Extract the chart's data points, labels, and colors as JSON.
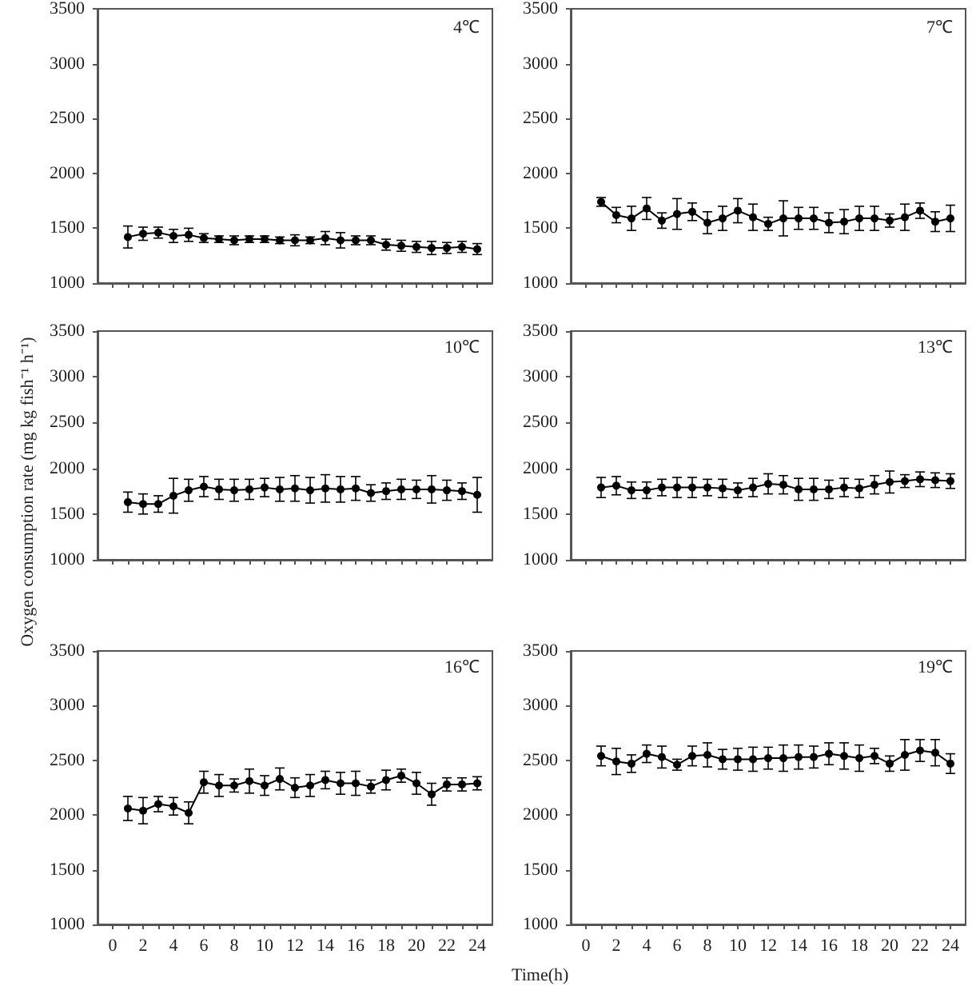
{
  "chart_data": [
    {
      "type": "line",
      "annotations": [
        "4℃"
      ],
      "tick_labels": "y",
      "marker": "circle",
      "line_style": "solid",
      "x": [
        1,
        2,
        3,
        4,
        5,
        6,
        7,
        8,
        9,
        10,
        11,
        12,
        13,
        14,
        15,
        16,
        17,
        18,
        19,
        20,
        21,
        22,
        23,
        24
      ],
      "xlim": [
        -1,
        25
      ],
      "xticks": [
        0,
        {
          "value": 1,
          "label": null
        },
        2,
        {
          "value": 3,
          "label": null
        },
        4,
        {
          "value": 5,
          "label": null
        },
        6,
        {
          "value": 7,
          "label": null
        },
        8,
        {
          "value": 9,
          "label": null
        },
        10,
        {
          "value": 11,
          "label": null
        },
        12,
        {
          "value": 13,
          "label": null
        },
        14,
        {
          "value": 15,
          "label": null
        },
        16,
        {
          "value": 17,
          "label": null
        },
        18,
        {
          "value": 19,
          "label": null
        },
        20,
        {
          "value": 21,
          "label": null
        },
        22,
        {
          "value": 23,
          "label": null
        },
        24
      ],
      "ylim": [
        1000,
        3500
      ],
      "yticks": [
        1000,
        1500,
        2000,
        2500,
        3000,
        3500
      ],
      "series": [
        {
          "color": "#000000",
          "values": [
            1420,
            1450,
            1460,
            1430,
            1440,
            1410,
            1400,
            1390,
            1400,
            1400,
            1390,
            1390,
            1390,
            1410,
            1390,
            1390,
            1390,
            1350,
            1340,
            1330,
            1320,
            1320,
            1330,
            1310
          ],
          "errors": [
            100,
            60,
            50,
            60,
            60,
            40,
            30,
            40,
            30,
            30,
            30,
            50,
            30,
            60,
            70,
            40,
            40,
            50,
            50,
            50,
            60,
            50,
            50,
            50
          ]
        }
      ]
    },
    {
      "type": "line",
      "annotations": [
        "7℃"
      ],
      "tick_labels": "y",
      "marker": "circle",
      "line_style": "solid",
      "x": [
        1,
        2,
        3,
        4,
        5,
        6,
        7,
        8,
        9,
        10,
        11,
        12,
        13,
        14,
        15,
        16,
        17,
        18,
        19,
        20,
        21,
        22,
        23,
        24
      ],
      "xlim": [
        -1,
        25
      ],
      "xticks": [
        0,
        {
          "value": 1,
          "label": null
        },
        2,
        {
          "value": 3,
          "label": null
        },
        4,
        {
          "value": 5,
          "label": null
        },
        6,
        {
          "value": 7,
          "label": null
        },
        8,
        {
          "value": 9,
          "label": null
        },
        10,
        {
          "value": 11,
          "label": null
        },
        12,
        {
          "value": 13,
          "label": null
        },
        14,
        {
          "value": 15,
          "label": null
        },
        16,
        {
          "value": 17,
          "label": null
        },
        18,
        {
          "value": 19,
          "label": null
        },
        20,
        {
          "value": 21,
          "label": null
        },
        22,
        {
          "value": 23,
          "label": null
        },
        24
      ],
      "ylim": [
        1000,
        3500
      ],
      "yticks": [
        1000,
        1500,
        2000,
        2500,
        3000,
        3500
      ],
      "series": [
        {
          "color": "#000000",
          "values": [
            1740,
            1620,
            1590,
            1680,
            1570,
            1630,
            1650,
            1550,
            1590,
            1660,
            1600,
            1540,
            1590,
            1590,
            1590,
            1550,
            1560,
            1590,
            1590,
            1570,
            1600,
            1660,
            1560,
            1590
          ],
          "errors": [
            40,
            70,
            110,
            100,
            70,
            140,
            80,
            100,
            110,
            110,
            120,
            60,
            160,
            100,
            100,
            90,
            110,
            110,
            110,
            60,
            120,
            70,
            90,
            120
          ]
        }
      ]
    },
    {
      "type": "line",
      "annotations": [
        "10℃"
      ],
      "ylabel": "Oxygen consumption rate (mg kg fish⁻¹ h⁻¹)",
      "tick_labels": "y",
      "marker": "circle",
      "line_style": "solid",
      "x": [
        1,
        2,
        3,
        4,
        5,
        6,
        7,
        8,
        9,
        10,
        11,
        12,
        13,
        14,
        15,
        16,
        17,
        18,
        19,
        20,
        21,
        22,
        23,
        24
      ],
      "xlim": [
        -1,
        25
      ],
      "xticks": [
        0,
        {
          "value": 1,
          "label": null
        },
        2,
        {
          "value": 3,
          "label": null
        },
        4,
        {
          "value": 5,
          "label": null
        },
        6,
        {
          "value": 7,
          "label": null
        },
        8,
        {
          "value": 9,
          "label": null
        },
        10,
        {
          "value": 11,
          "label": null
        },
        12,
        {
          "value": 13,
          "label": null
        },
        14,
        {
          "value": 15,
          "label": null
        },
        16,
        {
          "value": 17,
          "label": null
        },
        18,
        {
          "value": 19,
          "label": null
        },
        20,
        {
          "value": 21,
          "label": null
        },
        22,
        {
          "value": 23,
          "label": null
        },
        24
      ],
      "ylim": [
        1000,
        3500
      ],
      "yticks": [
        1000,
        1500,
        2000,
        2500,
        3000,
        3500
      ],
      "series": [
        {
          "color": "#000000",
          "values": [
            1630,
            1610,
            1610,
            1700,
            1760,
            1800,
            1770,
            1760,
            1770,
            1790,
            1770,
            1780,
            1760,
            1780,
            1770,
            1780,
            1730,
            1750,
            1770,
            1770,
            1770,
            1760,
            1750,
            1710
          ],
          "errors": [
            110,
            110,
            90,
            190,
            120,
            110,
            110,
            120,
            110,
            100,
            130,
            140,
            140,
            150,
            140,
            130,
            90,
            90,
            110,
            100,
            150,
            110,
            90,
            190
          ]
        }
      ]
    },
    {
      "type": "line",
      "annotations": [
        "13℃"
      ],
      "tick_labels": "y",
      "marker": "circle",
      "line_style": "solid",
      "x": [
        1,
        2,
        3,
        4,
        5,
        6,
        7,
        8,
        9,
        10,
        11,
        12,
        13,
        14,
        15,
        16,
        17,
        18,
        19,
        20,
        21,
        22,
        23,
        24
      ],
      "xlim": [
        -1,
        25
      ],
      "xticks": [
        0,
        {
          "value": 1,
          "label": null
        },
        2,
        {
          "value": 3,
          "label": null
        },
        4,
        {
          "value": 5,
          "label": null
        },
        6,
        {
          "value": 7,
          "label": null
        },
        8,
        {
          "value": 9,
          "label": null
        },
        10,
        {
          "value": 11,
          "label": null
        },
        12,
        {
          "value": 13,
          "label": null
        },
        14,
        {
          "value": 15,
          "label": null
        },
        16,
        {
          "value": 17,
          "label": null
        },
        18,
        {
          "value": 19,
          "label": null
        },
        20,
        {
          "value": 21,
          "label": null
        },
        22,
        {
          "value": 23,
          "label": null
        },
        24
      ],
      "ylim": [
        1000,
        3500
      ],
      "yticks": [
        1000,
        1500,
        2000,
        2500,
        3000,
        3500
      ],
      "series": [
        {
          "color": "#000000",
          "values": [
            1790,
            1810,
            1760,
            1760,
            1790,
            1790,
            1790,
            1790,
            1780,
            1760,
            1790,
            1830,
            1820,
            1770,
            1770,
            1770,
            1790,
            1780,
            1820,
            1850,
            1860,
            1880,
            1870,
            1860
          ],
          "errors": [
            110,
            100,
            90,
            90,
            90,
            110,
            110,
            90,
            100,
            80,
            100,
            110,
            100,
            120,
            120,
            100,
            100,
            100,
            100,
            120,
            70,
            80,
            80,
            80
          ]
        }
      ]
    },
    {
      "type": "line",
      "annotations": [
        "16℃"
      ],
      "xlabel": "Time(h)",
      "marker": "circle",
      "line_style": "solid",
      "x": [
        1,
        2,
        3,
        4,
        5,
        6,
        7,
        8,
        9,
        10,
        11,
        12,
        13,
        14,
        15,
        16,
        17,
        18,
        19,
        20,
        21,
        22,
        23,
        24
      ],
      "xlim": [
        -1,
        25
      ],
      "xticks": [
        0,
        {
          "value": 1,
          "label": null
        },
        2,
        {
          "value": 3,
          "label": null
        },
        4,
        {
          "value": 5,
          "label": null
        },
        6,
        {
          "value": 7,
          "label": null
        },
        8,
        {
          "value": 9,
          "label": null
        },
        10,
        {
          "value": 11,
          "label": null
        },
        12,
        {
          "value": 13,
          "label": null
        },
        14,
        {
          "value": 15,
          "label": null
        },
        16,
        {
          "value": 17,
          "label": null
        },
        18,
        {
          "value": 19,
          "label": null
        },
        20,
        {
          "value": 21,
          "label": null
        },
        22,
        {
          "value": 23,
          "label": null
        },
        24
      ],
      "ylim": [
        1000,
        3500
      ],
      "yticks": [
        1000,
        1500,
        2000,
        2500,
        3000,
        3500
      ],
      "series": [
        {
          "color": "#000000",
          "values": [
            2060,
            2040,
            2100,
            2080,
            2020,
            2300,
            2270,
            2270,
            2310,
            2270,
            2330,
            2250,
            2270,
            2320,
            2290,
            2290,
            2260,
            2320,
            2360,
            2290,
            2190,
            2280,
            2280,
            2290
          ],
          "errors": [
            110,
            120,
            70,
            80,
            100,
            100,
            100,
            60,
            110,
            90,
            100,
            90,
            100,
            80,
            100,
            110,
            60,
            90,
            60,
            100,
            100,
            60,
            60,
            60
          ]
        }
      ]
    },
    {
      "type": "line",
      "annotations": [
        "19℃"
      ],
      "marker": "circle",
      "line_style": "solid",
      "x": [
        1,
        2,
        3,
        4,
        5,
        6,
        7,
        8,
        9,
        10,
        11,
        12,
        13,
        14,
        15,
        16,
        17,
        18,
        19,
        20,
        21,
        22,
        23,
        24
      ],
      "xlim": [
        -1,
        25
      ],
      "xticks": [
        0,
        {
          "value": 1,
          "label": null
        },
        2,
        {
          "value": 3,
          "label": null
        },
        4,
        {
          "value": 5,
          "label": null
        },
        6,
        {
          "value": 7,
          "label": null
        },
        8,
        {
          "value": 9,
          "label": null
        },
        10,
        {
          "value": 11,
          "label": null
        },
        12,
        {
          "value": 13,
          "label": null
        },
        14,
        {
          "value": 15,
          "label": null
        },
        16,
        {
          "value": 17,
          "label": null
        },
        18,
        {
          "value": 19,
          "label": null
        },
        20,
        {
          "value": 21,
          "label": null
        },
        22,
        {
          "value": 23,
          "label": null
        },
        24
      ],
      "ylim": [
        1000,
        3500
      ],
      "yticks": [
        1000,
        1500,
        2000,
        2500,
        3000,
        3500
      ],
      "series": [
        {
          "color": "#000000",
          "values": [
            2540,
            2490,
            2470,
            2560,
            2530,
            2460,
            2540,
            2550,
            2510,
            2510,
            2510,
            2520,
            2520,
            2530,
            2530,
            2560,
            2540,
            2520,
            2540,
            2470,
            2550,
            2590,
            2570,
            2470
          ],
          "errors": [
            90,
            120,
            80,
            80,
            100,
            50,
            90,
            110,
            90,
            100,
            110,
            100,
            120,
            110,
            100,
            100,
            120,
            120,
            70,
            70,
            140,
            100,
            120,
            90
          ]
        }
      ]
    }
  ]
}
